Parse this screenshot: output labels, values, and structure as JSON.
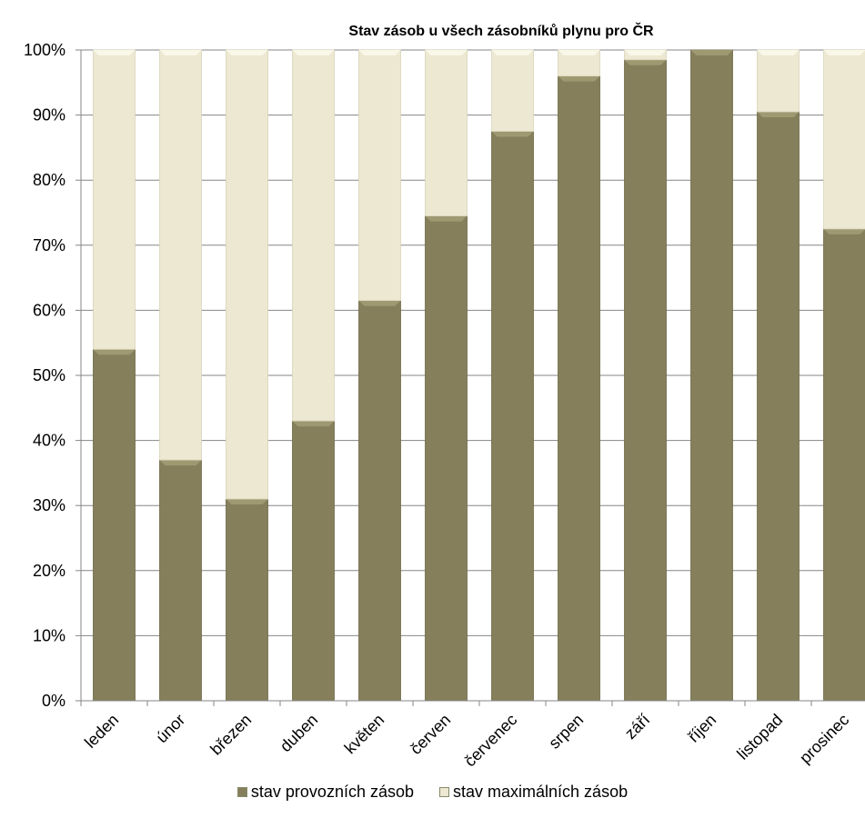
{
  "chart_data": {
    "type": "bar",
    "stacked": true,
    "title": "Stav zásob u všech zásobníků plynu pro ČR",
    "xlabel": "",
    "ylabel": "",
    "ylim": [
      0,
      100
    ],
    "ytick_format": "percent",
    "yticks": [
      "0%",
      "10%",
      "20%",
      "30%",
      "40%",
      "50%",
      "60%",
      "70%",
      "80%",
      "90%",
      "100%"
    ],
    "categories": [
      "leden",
      "únor",
      "březen",
      "duben",
      "květen",
      "červen",
      "červenec",
      "srpen",
      "září",
      "říjen",
      "listopad",
      "prosinec"
    ],
    "series": [
      {
        "name": "stav provozních zásob",
        "color": "#857f5b",
        "values": [
          54,
          37,
          31,
          43,
          61.5,
          74.5,
          87.5,
          96,
          98.5,
          100,
          90.5,
          72.5
        ]
      },
      {
        "name": "stav maximálních zásob",
        "color": "#ece8d2",
        "values": [
          46,
          63,
          69,
          57,
          38.5,
          25.5,
          12.5,
          4,
          1.5,
          0,
          9.5,
          27.5
        ]
      }
    ],
    "grid": true,
    "legend_position": "bottom"
  }
}
